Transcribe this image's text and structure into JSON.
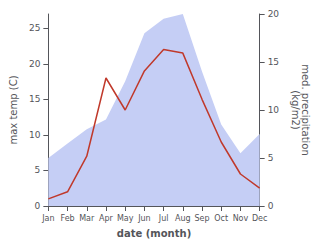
{
  "chart_data": {
    "type": "line",
    "categories": [
      "Jan",
      "Feb",
      "Mar",
      "Apr",
      "May",
      "Jun",
      "Jul",
      "Aug",
      "Sep",
      "Oct",
      "Nov",
      "Dec"
    ],
    "series": [
      {
        "type": "area",
        "color": "#c5cef5",
        "axis": "y2",
        "values": [
          5.0,
          6.5,
          8.0,
          9.0,
          13.0,
          18.0,
          19.5,
          20.0,
          14.0,
          8.5,
          5.5,
          7.5
        ]
      },
      {
        "type": "line",
        "color": "#c0392b",
        "values": [
          1.0,
          2.0,
          7.0,
          18.0,
          13.5,
          19.0,
          22.0,
          21.5,
          15.0,
          9.0,
          4.5,
          2.5
        ]
      }
    ],
    "xlabel": "date (month)",
    "ylabel": "max temp (C)",
    "y2label": "med. precipitation\n(kg/m2)",
    "ylim": [
      0,
      27
    ],
    "yticks": [
      0,
      5,
      10,
      15,
      20,
      25
    ],
    "y2lim": [
      0,
      20
    ],
    "y2ticks": [
      0,
      5,
      10,
      15,
      20
    ],
    "grid": false
  }
}
